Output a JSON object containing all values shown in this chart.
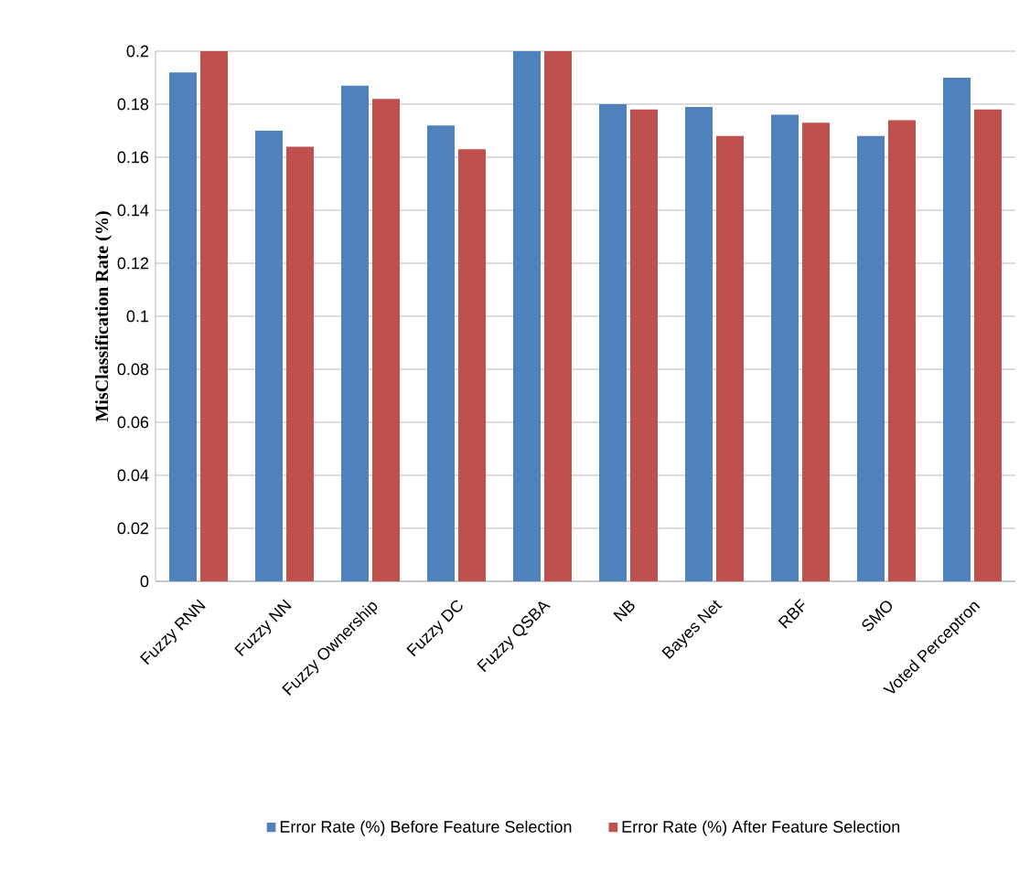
{
  "chart_data": {
    "type": "bar",
    "ylabel": "MisClassification  Rate (%)",
    "categories": [
      "Fuzzy RNN",
      "Fuzzy NN",
      "Fuzzy Ownership",
      "Fuzzy DC",
      "Fuzzy QSBA",
      "NB",
      "Bayes Net",
      "RBF",
      "SMO",
      "Voted Perceptron"
    ],
    "series": [
      {
        "name": "Error Rate (%) Before Feature Selection",
        "color": "#4f81bd",
        "values": [
          0.192,
          0.17,
          0.187,
          0.172,
          0.2,
          0.18,
          0.179,
          0.176,
          0.168,
          0.19
        ]
      },
      {
        "name": "Error Rate (%) After Feature Selection",
        "color": "#c0504d",
        "values": [
          0.2,
          0.164,
          0.182,
          0.163,
          0.2,
          0.178,
          0.168,
          0.173,
          0.174,
          0.178
        ]
      }
    ],
    "ylim": [
      0,
      0.2
    ],
    "yticks": [
      0,
      0.02,
      0.04,
      0.06,
      0.08,
      0.1,
      0.12,
      0.14,
      0.16,
      0.18,
      0.2
    ],
    "grid": "y",
    "legend": "bottom"
  }
}
